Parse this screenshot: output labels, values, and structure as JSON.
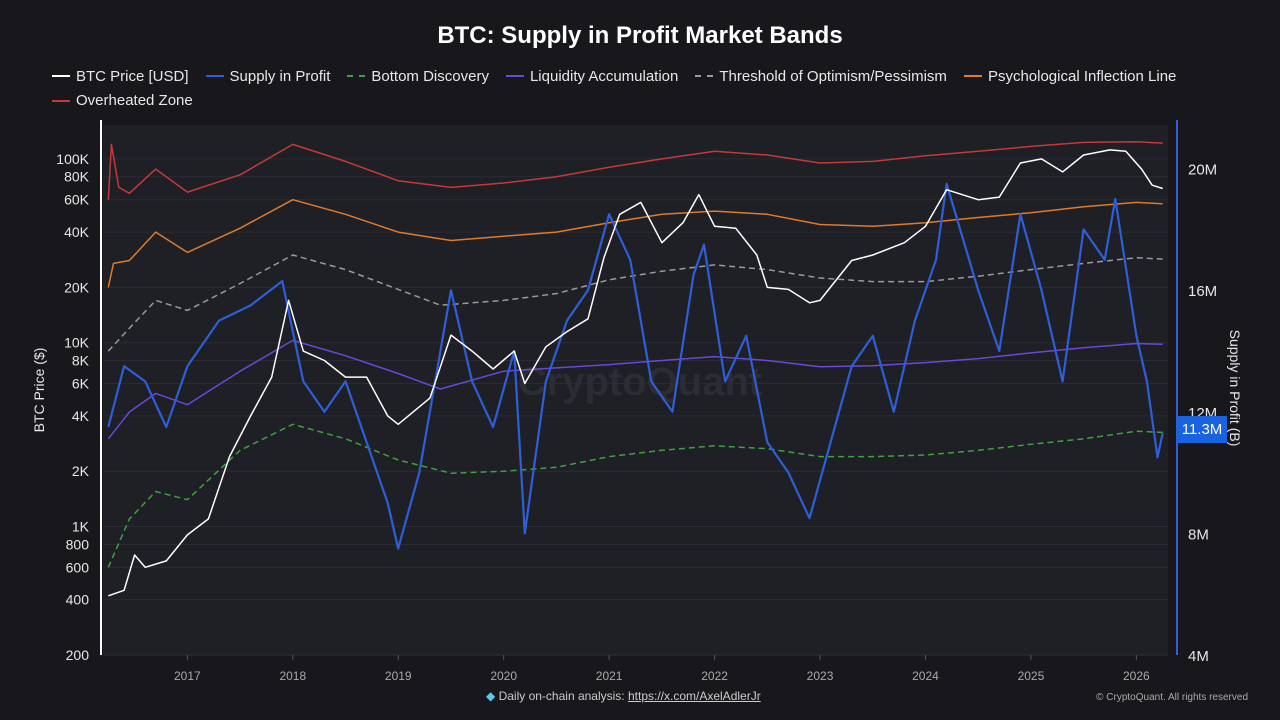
{
  "chart_data": {
    "type": "line",
    "title": "BTC: Supply in Profit Market Bands",
    "ylabel_left": "BTC Price ($)",
    "ylabel_right": "Supply in Profit (B)",
    "y_left_scale": "log",
    "y_left_range": [
      200,
      150000
    ],
    "y_right_range": [
      4,
      21.5
    ],
    "x_range": [
      2016.2,
      2026.3
    ],
    "x_ticks": [
      "2017",
      "2018",
      "2019",
      "2020",
      "2021",
      "2022",
      "2023",
      "2024",
      "2025",
      "2026"
    ],
    "y_left_ticks": [
      {
        "v": 200,
        "label": "200"
      },
      {
        "v": 400,
        "label": "400"
      },
      {
        "v": 600,
        "label": "600"
      },
      {
        "v": 800,
        "label": "800"
      },
      {
        "v": 1000,
        "label": "1K"
      },
      {
        "v": 2000,
        "label": "2K"
      },
      {
        "v": 4000,
        "label": "4K"
      },
      {
        "v": 6000,
        "label": "6K"
      },
      {
        "v": 8000,
        "label": "8K"
      },
      {
        "v": 10000,
        "label": "10K"
      },
      {
        "v": 20000,
        "label": "20K"
      },
      {
        "v": 40000,
        "label": "40K"
      },
      {
        "v": 60000,
        "label": "60K"
      },
      {
        "v": 80000,
        "label": "80K"
      },
      {
        "v": 100000,
        "label": "100K"
      }
    ],
    "y_right_ticks": [
      {
        "v": 4,
        "label": "4M"
      },
      {
        "v": 8,
        "label": "8M"
      },
      {
        "v": 12,
        "label": "12M"
      },
      {
        "v": 16,
        "label": "16M"
      },
      {
        "v": 20,
        "label": "20M"
      }
    ],
    "current_value_label": "11.3M",
    "grid": true,
    "legend_position": "top",
    "series": [
      {
        "name": "BTC Price [USD]",
        "axis": "left",
        "color": "#ffffff",
        "style": "solid",
        "x": [
          2016.25,
          2016.4,
          2016.5,
          2016.6,
          2016.8,
          2017.0,
          2017.2,
          2017.4,
          2017.6,
          2017.8,
          2017.96,
          2018.1,
          2018.3,
          2018.5,
          2018.7,
          2018.9,
          2019.0,
          2019.3,
          2019.5,
          2019.7,
          2019.9,
          2020.1,
          2020.2,
          2020.4,
          2020.6,
          2020.8,
          2020.95,
          2021.1,
          2021.3,
          2021.5,
          2021.7,
          2021.85,
          2022.0,
          2022.2,
          2022.4,
          2022.5,
          2022.7,
          2022.9,
          2023.0,
          2023.3,
          2023.5,
          2023.8,
          2024.0,
          2024.2,
          2024.5,
          2024.7,
          2024.9,
          2025.1,
          2025.3,
          2025.5,
          2025.75,
          2025.9,
          2026.05,
          2026.15,
          2026.25
        ],
        "y": [
          420,
          450,
          700,
          600,
          650,
          900,
          1100,
          2400,
          4000,
          6500,
          17000,
          9000,
          8000,
          6500,
          6500,
          4000,
          3600,
          5000,
          11000,
          9000,
          7200,
          9000,
          6000,
          9500,
          11500,
          13500,
          29000,
          50000,
          58000,
          35000,
          45000,
          64000,
          43000,
          42000,
          30000,
          20000,
          19500,
          16500,
          17000,
          28000,
          30000,
          35000,
          43000,
          68000,
          60000,
          62000,
          95000,
          100000,
          85000,
          105000,
          112000,
          110000,
          88000,
          72000,
          69000
        ]
      },
      {
        "name": "Supply in Profit",
        "axis": "right",
        "color": "#2e5fd6",
        "style": "solid",
        "x": [
          2016.25,
          2016.4,
          2016.6,
          2016.8,
          2017.0,
          2017.3,
          2017.6,
          2017.9,
          2018.1,
          2018.3,
          2018.5,
          2018.7,
          2018.9,
          2019.0,
          2019.2,
          2019.5,
          2019.7,
          2019.9,
          2020.1,
          2020.2,
          2020.4,
          2020.6,
          2020.8,
          2021.0,
          2021.2,
          2021.4,
          2021.6,
          2021.8,
          2021.9,
          2022.1,
          2022.3,
          2022.5,
          2022.7,
          2022.9,
          2023.1,
          2023.3,
          2023.5,
          2023.7,
          2023.9,
          2024.1,
          2024.2,
          2024.5,
          2024.7,
          2024.9,
          2025.1,
          2025.3,
          2025.5,
          2025.7,
          2025.8,
          2026.0,
          2026.1,
          2026.2,
          2026.25
        ],
        "y": [
          11.5,
          13.5,
          13,
          11.5,
          13.5,
          15,
          15.5,
          16.3,
          13,
          12,
          13,
          11,
          9,
          7.5,
          10,
          16,
          13,
          11.5,
          14,
          8,
          13,
          15,
          16,
          18.5,
          17,
          13,
          12,
          16.5,
          17.5,
          13,
          14.5,
          11,
          10,
          8.5,
          11,
          13.5,
          14.5,
          12,
          15,
          17,
          19.5,
          16,
          14,
          18.5,
          16,
          13,
          18,
          17,
          19,
          14.5,
          13,
          10.5,
          11.3
        ]
      },
      {
        "name": "Bottom Discovery",
        "axis": "left",
        "color": "#3ea33e",
        "style": "dashed",
        "x": [
          2016.25,
          2016.45,
          2016.7,
          2017.0,
          2017.5,
          2018.0,
          2018.5,
          2019.0,
          2019.5,
          2020.0,
          2020.5,
          2021.0,
          2021.5,
          2022.0,
          2022.5,
          2023.0,
          2023.5,
          2024.0,
          2024.5,
          2025.0,
          2025.5,
          2026.0,
          2026.25
        ],
        "y": [
          600,
          1100,
          1550,
          1400,
          2600,
          3600,
          3000,
          2300,
          1950,
          2000,
          2100,
          2400,
          2600,
          2750,
          2650,
          2400,
          2400,
          2450,
          2600,
          2800,
          3000,
          3300,
          3250
        ]
      },
      {
        "name": "Liquidity Accumulation",
        "axis": "left",
        "color": "#6a48d8",
        "style": "solid",
        "x": [
          2016.25,
          2016.45,
          2016.7,
          2017.0,
          2017.5,
          2018.0,
          2018.5,
          2019.0,
          2019.4,
          2020.0,
          2020.5,
          2021.0,
          2021.5,
          2022.0,
          2022.5,
          2023.0,
          2023.5,
          2024.0,
          2024.5,
          2025.0,
          2025.5,
          2026.0,
          2026.25
        ],
        "y": [
          3000,
          4200,
          5300,
          4600,
          7000,
          10300,
          8500,
          6800,
          5600,
          7000,
          7300,
          7600,
          8000,
          8400,
          8000,
          7400,
          7500,
          7800,
          8200,
          8800,
          9400,
          9900,
          9800
        ]
      },
      {
        "name": "Threshold of Optimism/Pessimism",
        "axis": "left",
        "color": "#9a9a9a",
        "style": "dashed",
        "x": [
          2016.25,
          2016.45,
          2016.7,
          2017.0,
          2017.5,
          2018.0,
          2018.5,
          2019.0,
          2019.4,
          2020.0,
          2020.5,
          2021.0,
          2021.5,
          2022.0,
          2022.5,
          2023.0,
          2023.5,
          2024.0,
          2024.5,
          2025.0,
          2025.5,
          2026.0,
          2026.25
        ],
        "y": [
          9000,
          12000,
          17000,
          15000,
          21000,
          30000,
          25000,
          19500,
          16000,
          17000,
          18500,
          22000,
          24500,
          26500,
          25000,
          22500,
          21500,
          21500,
          23000,
          25000,
          27000,
          29000,
          28500
        ]
      },
      {
        "name": "Psychological Inflection Line",
        "axis": "left",
        "color": "#e07b2a",
        "style": "solid",
        "x": [
          2016.25,
          2016.3,
          2016.45,
          2016.7,
          2017.0,
          2017.5,
          2018.0,
          2018.5,
          2019.0,
          2019.5,
          2020.0,
          2020.5,
          2021.0,
          2021.5,
          2022.0,
          2022.5,
          2023.0,
          2023.5,
          2024.0,
          2024.5,
          2025.0,
          2025.5,
          2026.0,
          2026.25
        ],
        "y": [
          20000,
          27000,
          28000,
          40000,
          31000,
          42000,
          60000,
          50000,
          40000,
          36000,
          38000,
          40000,
          45000,
          50000,
          52000,
          50000,
          44000,
          43000,
          45000,
          48000,
          51000,
          55000,
          58000,
          57000
        ]
      },
      {
        "name": "Overheated Zone",
        "axis": "left",
        "color": "#c43a3a",
        "style": "solid",
        "x": [
          2016.25,
          2016.28,
          2016.35,
          2016.45,
          2016.7,
          2017.0,
          2017.5,
          2018.0,
          2018.5,
          2019.0,
          2019.5,
          2020.0,
          2020.5,
          2021.0,
          2021.5,
          2022.0,
          2022.5,
          2023.0,
          2023.5,
          2024.0,
          2024.5,
          2025.0,
          2025.5,
          2026.0,
          2026.25
        ],
        "y": [
          60000,
          120000,
          70000,
          65000,
          88000,
          66000,
          82000,
          120000,
          97000,
          76000,
          70000,
          74000,
          80000,
          90000,
          100000,
          110000,
          105000,
          95000,
          97000,
          104000,
          110000,
          117000,
          123000,
          124000,
          122000
        ]
      }
    ]
  },
  "watermark": "CryptoQuant",
  "footer": {
    "text": "Daily on-chain analysis:",
    "link": "https://x.com/AxelAdlerJr",
    "copyright": "© CryptoQuant. All rights reserved"
  }
}
